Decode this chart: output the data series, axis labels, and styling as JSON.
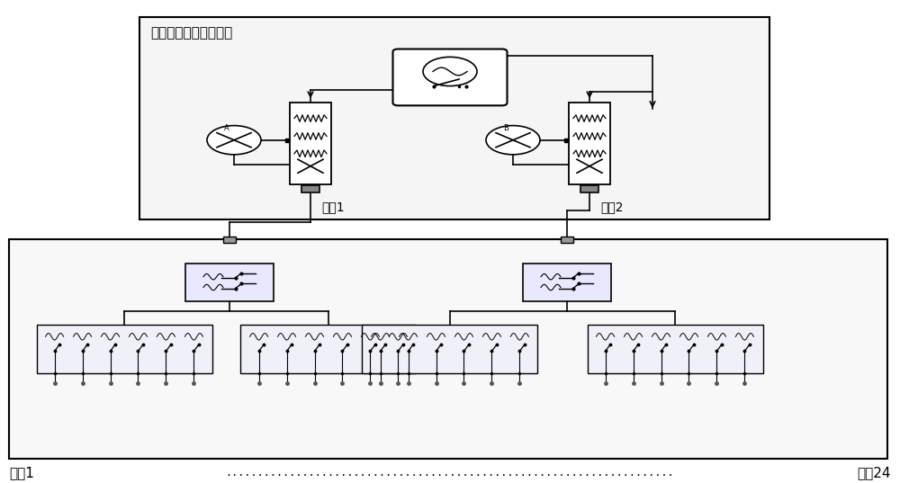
{
  "bg_color": "#ffffff",
  "text_vna": "二端口矢量网络分析仪",
  "text_port1": "端口1",
  "text_port2": "端口2",
  "text_port1_bottom": "端口1",
  "text_port24_bottom": "端口24",
  "dots_text": "......................................................................",
  "figsize": [
    10.0,
    5.37
  ],
  "dpi": 100
}
